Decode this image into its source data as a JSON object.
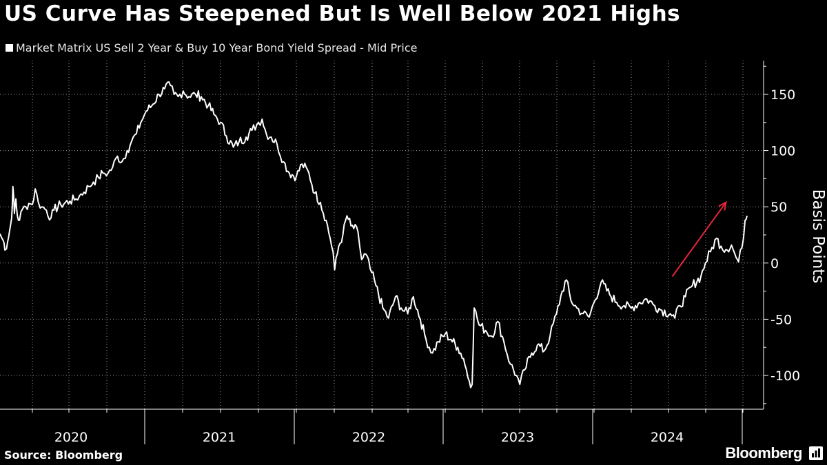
{
  "header": {
    "title": "US Curve Has Steepened But Is Well Below 2021 Highs"
  },
  "legend": {
    "label": "Market Matrix US Sell 2 Year & Buy 10 Year Bond Yield Spread - Mid Price",
    "color": "#ffffff"
  },
  "footer": {
    "source": "Source: Bloomberg",
    "brand": "Bloomberg"
  },
  "colors": {
    "background": "#000000",
    "line": "#ffffff",
    "arrow": "#e8263b",
    "grid": "#9a9a9a"
  },
  "chart_data": {
    "type": "line",
    "ylabel": "Basis Points",
    "ylim": [
      -130,
      180
    ],
    "yticks": [
      150,
      100,
      50,
      0,
      -50,
      -100
    ],
    "ytick_labels": [
      "150",
      "100",
      "50",
      "0",
      "-50",
      "-100"
    ],
    "year_labels": [
      "2020",
      "2021",
      "2022",
      "2023",
      "2024"
    ],
    "xlim": [
      "2019-08-01",
      "2024-11-01"
    ],
    "grid": true,
    "legend_position": "top-left",
    "series": [
      {
        "name": "Market Matrix US Sell 2 Year & Buy 10 Year Bond Yield Spread - Mid Price",
        "points": [
          [
            "2019-08-01",
            26
          ],
          [
            "2019-08-10",
            22
          ],
          [
            "2019-08-20",
            18
          ],
          [
            "2019-08-28",
            12
          ],
          [
            "2019-09-05",
            18
          ],
          [
            "2019-09-15",
            28
          ],
          [
            "2019-09-25",
            40
          ],
          [
            "2019-10-01",
            68
          ],
          [
            "2019-10-08",
            44
          ],
          [
            "2019-10-15",
            57
          ],
          [
            "2019-10-22",
            42
          ],
          [
            "2019-11-01",
            38
          ],
          [
            "2019-11-15",
            48
          ],
          [
            "2019-12-01",
            50
          ],
          [
            "2019-12-15",
            53
          ],
          [
            "2020-01-01",
            52
          ],
          [
            "2020-01-10",
            66
          ],
          [
            "2020-01-20",
            54
          ],
          [
            "2020-02-01",
            50
          ],
          [
            "2020-02-15",
            47
          ],
          [
            "2020-03-01",
            40
          ],
          [
            "2020-03-10",
            47
          ],
          [
            "2020-04-01",
            52
          ],
          [
            "2020-05-01",
            55
          ],
          [
            "2020-05-20",
            57
          ],
          [
            "2020-06-01",
            60
          ],
          [
            "2020-06-15",
            63
          ],
          [
            "2020-07-01",
            68
          ],
          [
            "2020-07-15",
            72
          ],
          [
            "2020-08-01",
            76
          ],
          [
            "2020-08-15",
            80
          ],
          [
            "2020-09-01",
            80
          ],
          [
            "2020-09-15",
            85
          ],
          [
            "2020-10-01",
            95
          ],
          [
            "2020-10-15",
            90
          ],
          [
            "2020-11-01",
            100
          ],
          [
            "2020-11-15",
            108
          ],
          [
            "2020-12-01",
            115
          ],
          [
            "2020-12-15",
            125
          ],
          [
            "2021-01-01",
            135
          ],
          [
            "2021-01-15",
            140
          ],
          [
            "2021-02-01",
            150
          ],
          [
            "2021-02-15",
            155
          ],
          [
            "2021-03-01",
            158
          ],
          [
            "2021-03-10",
            150
          ],
          [
            "2021-03-20",
            148
          ],
          [
            "2021-04-01",
            153
          ],
          [
            "2021-04-15",
            148
          ],
          [
            "2021-05-01",
            150
          ],
          [
            "2021-05-15",
            148
          ],
          [
            "2021-06-01",
            140
          ],
          [
            "2021-06-15",
            132
          ],
          [
            "2021-07-01",
            125
          ],
          [
            "2021-07-15",
            113
          ],
          [
            "2021-08-01",
            103
          ],
          [
            "2021-08-15",
            108
          ],
          [
            "2021-09-01",
            112
          ],
          [
            "2021-09-15",
            118
          ],
          [
            "2021-10-01",
            125
          ],
          [
            "2021-10-10",
            128
          ],
          [
            "2021-10-20",
            115
          ],
          [
            "2021-11-01",
            112
          ],
          [
            "2021-11-15",
            106
          ],
          [
            "2021-12-01",
            90
          ],
          [
            "2021-12-15",
            80
          ],
          [
            "2022-01-01",
            77
          ],
          [
            "2022-01-15",
            88
          ],
          [
            "2022-02-01",
            80
          ],
          [
            "2022-02-15",
            62
          ],
          [
            "2022-03-01",
            54
          ],
          [
            "2022-03-15",
            38
          ],
          [
            "2022-03-25",
            22
          ],
          [
            "2022-04-01",
            10
          ],
          [
            "2022-04-05",
            -6
          ],
          [
            "2022-04-15",
            15
          ],
          [
            "2022-04-25",
            25
          ],
          [
            "2022-05-05",
            42
          ],
          [
            "2022-05-15",
            33
          ],
          [
            "2022-06-01",
            28
          ],
          [
            "2022-06-10",
            3
          ],
          [
            "2022-06-20",
            8
          ],
          [
            "2022-07-01",
            -5
          ],
          [
            "2022-07-15",
            -20
          ],
          [
            "2022-08-01",
            -40
          ],
          [
            "2022-08-15",
            -49
          ],
          [
            "2022-09-01",
            -30
          ],
          [
            "2022-09-15",
            -40
          ],
          [
            "2022-10-01",
            -45
          ],
          [
            "2022-10-15",
            -30
          ],
          [
            "2022-11-01",
            -50
          ],
          [
            "2022-11-15",
            -68
          ],
          [
            "2022-12-01",
            -80
          ],
          [
            "2022-12-15",
            -70
          ],
          [
            "2023-01-01",
            -63
          ],
          [
            "2023-01-15",
            -68
          ],
          [
            "2023-02-01",
            -75
          ],
          [
            "2023-02-15",
            -85
          ],
          [
            "2023-03-01",
            -105
          ],
          [
            "2023-03-08",
            -108
          ],
          [
            "2023-03-13",
            -40
          ],
          [
            "2023-03-25",
            -55
          ],
          [
            "2023-04-10",
            -60
          ],
          [
            "2023-04-25",
            -65
          ],
          [
            "2023-05-10",
            -52
          ],
          [
            "2023-05-25",
            -70
          ],
          [
            "2023-06-10",
            -90
          ],
          [
            "2023-06-25",
            -100
          ],
          [
            "2023-07-03",
            -108
          ],
          [
            "2023-07-15",
            -95
          ],
          [
            "2023-08-01",
            -80
          ],
          [
            "2023-08-15",
            -73
          ],
          [
            "2023-09-01",
            -78
          ],
          [
            "2023-09-15",
            -65
          ],
          [
            "2023-10-01",
            -45
          ],
          [
            "2023-10-15",
            -25
          ],
          [
            "2023-10-25",
            -15
          ],
          [
            "2023-11-05",
            -33
          ],
          [
            "2023-11-20",
            -40
          ],
          [
            "2023-12-05",
            -45
          ],
          [
            "2023-12-20",
            -48
          ],
          [
            "2024-01-01",
            -35
          ],
          [
            "2024-01-15",
            -17
          ],
          [
            "2024-02-01",
            -28
          ],
          [
            "2024-02-15",
            -35
          ],
          [
            "2024-03-01",
            -38
          ],
          [
            "2024-03-15",
            -40
          ],
          [
            "2024-04-01",
            -35
          ],
          [
            "2024-04-15",
            -32
          ],
          [
            "2024-05-01",
            -38
          ],
          [
            "2024-05-15",
            -42
          ],
          [
            "2024-06-01",
            -45
          ],
          [
            "2024-06-10",
            -49
          ],
          [
            "2024-06-20",
            -38
          ],
          [
            "2024-07-01",
            -30
          ],
          [
            "2024-07-15",
            -20
          ],
          [
            "2024-08-01",
            -12
          ],
          [
            "2024-08-10",
            0
          ],
          [
            "2024-08-20",
            10
          ],
          [
            "2024-09-01",
            22
          ],
          [
            "2024-09-10",
            15
          ],
          [
            "2024-09-20",
            12
          ],
          [
            "2024-10-01",
            16
          ],
          [
            "2024-10-10",
            5
          ],
          [
            "2024-10-15",
            1
          ],
          [
            "2024-10-22",
            14
          ],
          [
            "2024-10-28",
            38
          ],
          [
            "2024-11-01",
            42
          ]
        ]
      }
    ],
    "annotations": [
      {
        "type": "arrow",
        "from": [
          "2024-06-05",
          -12
        ],
        "to": [
          "2024-09-20",
          54
        ]
      }
    ]
  }
}
